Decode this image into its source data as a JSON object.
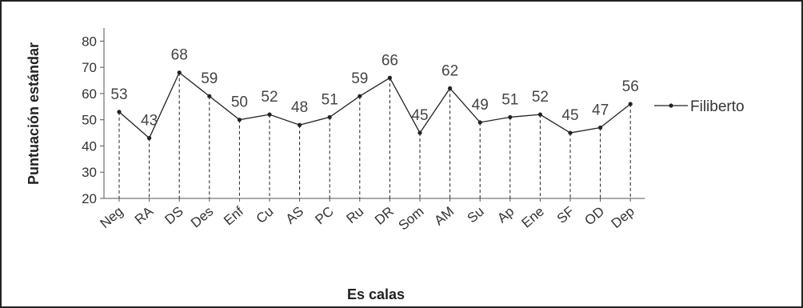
{
  "chart_data": {
    "type": "line",
    "categories": [
      "Neg",
      "RA",
      "DS",
      "Des",
      "Enf",
      "Cu",
      "AS",
      "PC",
      "Ru",
      "DR",
      "Som",
      "AM",
      "Su",
      "Ap",
      "Ene",
      "SF",
      "OD",
      "Dep"
    ],
    "series": [
      {
        "name": "Filiberto",
        "values": [
          53,
          43,
          68,
          59,
          50,
          52,
          48,
          51,
          59,
          66,
          45,
          62,
          49,
          51,
          52,
          45,
          47,
          56
        ],
        "color": "#222222"
      }
    ],
    "yticks": [
      20,
      30,
      40,
      50,
      60,
      70,
      80
    ],
    "ylim": [
      20,
      85
    ],
    "xlabel": "Es calas",
    "ylabel": "Puntuación estándar",
    "legend_position": "right",
    "drop_lines": true,
    "grid": false
  }
}
